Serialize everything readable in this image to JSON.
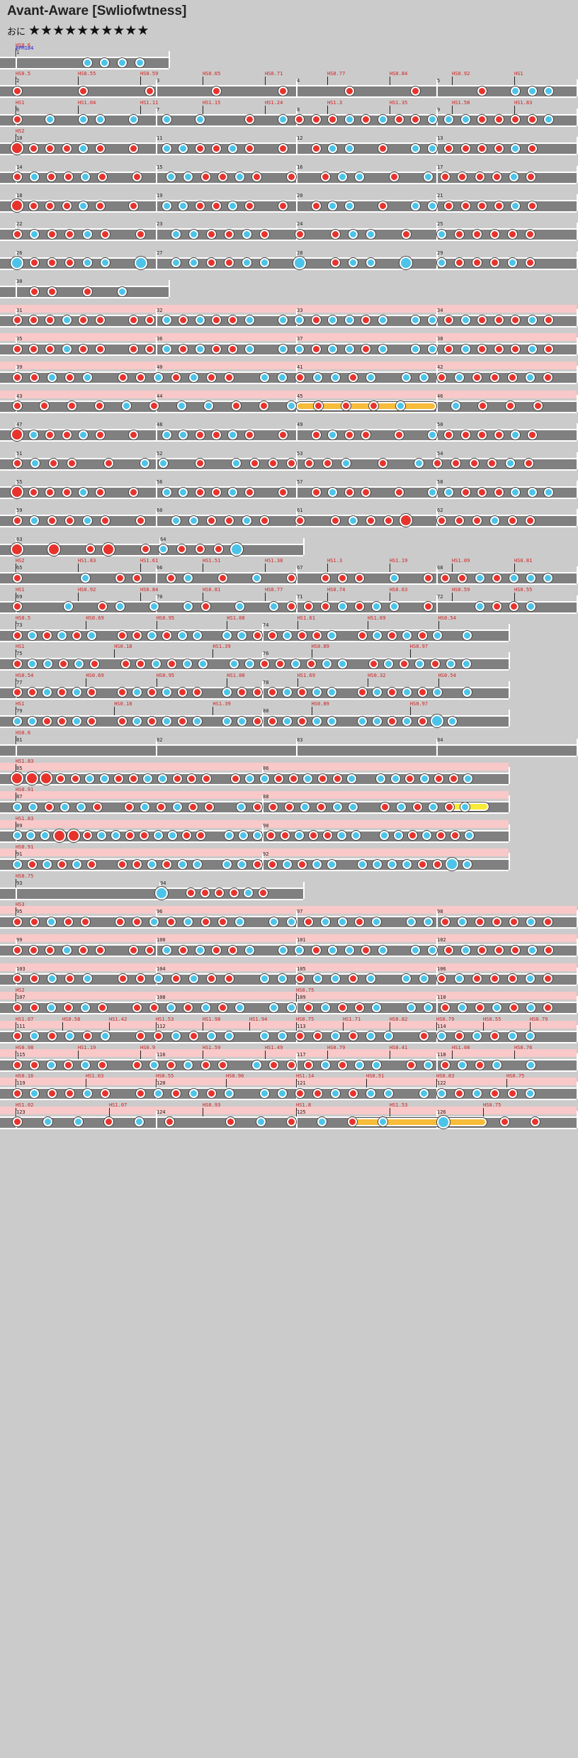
{
  "title": "Avant-Aware [Swliofwtness]",
  "course": "おに",
  "stars": "★★★★★★★★★★",
  "bpm_label": "BPM184",
  "colors": {
    "don": "#e8332c",
    "ka": "#4cc4e9",
    "roll": "#f7bc3a",
    "lane": "#808080",
    "highlight": "#f9c8c8"
  },
  "rows": [
    {
      "measures": [
        "1"
      ],
      "labels": [
        "HS0.6"
      ],
      "notes": "----kkkk",
      "hl": false,
      "w": 240
    },
    {
      "measures": [
        "2",
        "3",
        "4",
        "5"
      ],
      "labels": [
        "HS0.5",
        "HS0.55",
        "HS0.59",
        "HS0.65",
        "HS0.71",
        "HS0.77",
        "HS0.84",
        "HS0.92",
        "HS1"
      ],
      "notes": "d---d---d---d---d---d---d---d-kkk",
      "hl": false,
      "w": 816
    },
    {
      "measures": [
        "6",
        "7",
        "8",
        "9"
      ],
      "labels": [
        "HS1",
        "HS1.04",
        "HS1.11",
        "HS1.15",
        "HS1.24",
        "HS1.3",
        "HS1.35",
        "HS1.58",
        "HS1.83"
      ],
      "notes": "d-k-kk-k-k-k--d-kdddkdkddkkkddddk",
      "hl": false,
      "w": 816
    },
    {
      "measures": [
        "10",
        "11",
        "12",
        "13"
      ],
      "labels": [
        "HS2"
      ],
      "notes": "Ddddkd-d-kkddkd-d-dkk-d-kkddddkd-",
      "hl": false,
      "w": 816
    },
    {
      "measures": [
        "14",
        "15",
        "16",
        "17"
      ],
      "labels": [],
      "notes": "dkddkd-d-kkddkd-d-dkk-d-kddddkd-",
      "hl": false,
      "w": 816
    },
    {
      "measures": [
        "18",
        "19",
        "20",
        "21"
      ],
      "labels": [],
      "notes": "Ddddkd-d-kkddkd-d-dkk-d-kkddddkd-",
      "hl": false,
      "w": 816
    },
    {
      "measures": [
        "22",
        "23",
        "24",
        "25"
      ],
      "labels": [],
      "notes": "dkddkd-d-kkddkd-d-dkk-d-kddddd-",
      "hl": false,
      "w": 816
    },
    {
      "measures": [
        "26",
        "27",
        "28",
        "29"
      ],
      "labels": [],
      "notes": "Kdddkk-K-kkddkk-K-dkk-K-kdddkd-",
      "hl": false,
      "w": 816
    },
    {
      "measures": [
        "30"
      ],
      "labels": [],
      "notes": "-dd-d-k-",
      "hl": false,
      "w": 240
    },
    {
      "measures": [
        "31",
        "32",
        "33",
        "34"
      ],
      "labels": [],
      "notes": "dddkdd-ddkdkddk-kkdkkdk-kkdkdddkd",
      "hl": true,
      "w": 816
    },
    {
      "measures": [
        "35",
        "36",
        "37",
        "38"
      ],
      "labels": [],
      "notes": "dddkdd-ddkdkddk-kkdkkdk-kkdkdddkd",
      "hl": true,
      "w": 816
    },
    {
      "measures": [
        "39",
        "40",
        "41",
        "42"
      ],
      "labels": [],
      "notes": "ddkdk-ddkdkdd-kkdkkdk-kkdkdddkd",
      "hl": true,
      "w": 816
    },
    {
      "measures": [
        "43",
        "44",
        "45",
        "46"
      ],
      "labels": [],
      "notes": "ddddkdkkddkdddk-kddd",
      "hl": true,
      "w": 816,
      "roll": [
        0.5,
        0.75
      ]
    },
    {
      "measures": [
        "47",
        "48",
        "49",
        "50"
      ],
      "labels": [],
      "notes": "Dkddkd-d-kkddkd-d-dkdd-d-kddddkd-",
      "hl": false,
      "w": 816
    },
    {
      "measures": [
        "51",
        "52",
        "53",
        "54"
      ],
      "labels": [],
      "notes": "dkdd-d-kk-d-kdddddk-d-kddddkd-",
      "hl": false,
      "w": 816
    },
    {
      "measures": [
        "55",
        "56",
        "57",
        "58"
      ],
      "labels": [],
      "notes": "Ddddkd-d-kkddkd-d-dkdd-d-kkdddkkk",
      "hl": false,
      "w": 816
    },
    {
      "measures": [
        "59",
        "60",
        "61",
        "62"
      ],
      "labels": [],
      "notes": "dkddkd-d-kkddkd-d-dkddD-dddkdd-",
      "hl": false,
      "w": 816
    },
    {
      "measures": [
        "63",
        "64"
      ],
      "labels": [],
      "notes": "D-D-dD-dkdddK--",
      "hl": false,
      "w": 430
    },
    {
      "measures": [
        "65",
        "66",
        "67",
        "68"
      ],
      "labels": [
        "HS2",
        "HS1.83",
        "HS1.61",
        "HS1.51",
        "HS1.38",
        "HS1.3",
        "HS1.19",
        "HS1.09",
        "HS0.81"
      ],
      "notes": "d---k-dd-dk-d-k-d-ddd-k-dddkdkkk",
      "hl": false,
      "w": 816
    },
    {
      "measures": [
        "69",
        "70",
        "71",
        "72"
      ],
      "labels": [
        "HS1",
        "HS0.92",
        "HS0.84",
        "HS0.81",
        "HS0.77",
        "HS0.74",
        "HS0.63",
        "HS0.59",
        "HS0.55"
      ],
      "notes": "d--k-dk-k-kd-k-kdddkdkk-d--kddk-",
      "hl": false,
      "w": 816
    },
    {
      "measures": [
        "73",
        "74"
      ],
      "labels": [
        "HS0.5",
        "HS0.69",
        "HS0.95",
        "HS1.08",
        "HS1.61",
        "HS1.69",
        "HS0.54"
      ],
      "notes": "dkdkdk-ddkdkk-kkddkddk-dkdkdk-k-",
      "hl": false,
      "w": 720
    },
    {
      "measures": [
        "75",
        "76"
      ],
      "labels": [
        "HS1",
        "HS0.18",
        "HS1.39",
        "HS0.89",
        "HS0.97"
      ],
      "notes": "dkkdkd-ddkdkk-kkddkdkk-dkdkdkk-",
      "hl": false,
      "w": 720
    },
    {
      "measures": [
        "77",
        "78"
      ],
      "labels": [
        "HS0.54",
        "HS0.69",
        "HS0.95",
        "HS1.08",
        "HS1.69",
        "HS0.32",
        "HS0.54"
      ],
      "notes": "ddkdkd-dkdkdd-kdddkdkk-dkdkdk-k-",
      "hl": false,
      "w": 720
    },
    {
      "measures": [
        "79",
        "80"
      ],
      "labels": [
        "HS1",
        "HS0.18",
        "HS1.39",
        "HS0.89",
        "HS0.97"
      ],
      "notes": "kkddkd-dkdkdk-kkddkdkk-kkdkdKk--",
      "hl": false,
      "w": 720
    },
    {
      "measures": [
        "81",
        "82",
        "83",
        "84"
      ],
      "labels": [
        "HS0.6"
      ],
      "notes": "",
      "hl": false,
      "w": 816
    },
    {
      "measures": [
        "85",
        "86"
      ],
      "labels": [
        "HS1.83"
      ],
      "notes": "DDDddkkddkkddd-dkkddkddk-kkdkddk-",
      "hl": true,
      "w": 720
    },
    {
      "measures": [
        "87",
        "88"
      ],
      "labels": [
        "HS0.91"
      ],
      "notes": "kkdkkd-dkdkdd-kdddkdkk-dkdkdk-",
      "hl": true,
      "w": 720,
      "roll": [
        0.88,
        0.96
      ],
      "rollcolor": "yellow"
    },
    {
      "measures": [
        "89",
        "90"
      ],
      "labels": [
        "HS1.83"
      ],
      "notes": "kkkDDdkkddkkdd-kkkddkddkk-kkdkddk-",
      "hl": true,
      "w": 720
    },
    {
      "measures": [
        "91",
        "92"
      ],
      "labels": [
        "HS0.91"
      ],
      "notes": "kdkdkd-ddkdkk-kkddkdkk-kkkkddKk-",
      "hl": true,
      "w": 720
    },
    {
      "measures": [
        "93",
        "94"
      ],
      "labels": [
        "HS0.75"
      ],
      "notes": "----------K-ddddkd-",
      "hl": false,
      "w": 430
    },
    {
      "measures": [
        "95",
        "96",
        "97",
        "98"
      ],
      "labels": [
        "HS3"
      ],
      "notes": "ddkdd-ddkdkddk-kkdkkdk-kkdkdddkd",
      "hl": true,
      "w": 816
    },
    {
      "measures": [
        "99",
        "100",
        "101",
        "102"
      ],
      "labels": [],
      "notes": "dddkdd-ddkdkddk-kkdkkdk-kkdkdddkd",
      "hl": true,
      "w": 816
    },
    {
      "measures": [
        "103",
        "104",
        "105",
        "106"
      ],
      "labels": [],
      "notes": "ddkdk-ddkdkdd-kkdkkdk-kkdkdddkd",
      "hl": true,
      "w": 816
    },
    {
      "measures": [
        "107",
        "108",
        "109",
        "110"
      ],
      "labels": [
        "HS2",
        "HS0.75"
      ],
      "notes": "ddkdkd-ddkdkdk-kkdkddk-kkdkdkdkd",
      "hl": true,
      "w": 816
    },
    {
      "measures": [
        "111",
        "112",
        "113",
        "114"
      ],
      "labels": [
        "HS1.07",
        "HS0.58",
        "HS1.42",
        "HS1.53",
        "HS1.98",
        "HS1.94",
        "HS0.75",
        "HS1.71",
        "HS0.82",
        "HS0.79",
        "HS0.55",
        "HS0.79"
      ],
      "notes": "dkdkdk-ddkdkk-kkddkdkk-dkdkdkk-",
      "hl": true,
      "w": 816
    },
    {
      "measures": [
        "115",
        "116",
        "117",
        "118"
      ],
      "labels": [
        "HS0.98",
        "HS1.19",
        "HS0.9",
        "HS1.59",
        "HS1.49",
        "HS0.79",
        "HS0.41",
        "HS1.08",
        "HS0.76"
      ],
      "notes": "ddkdkd-dkdkdd-kdddkdkk-dkdkdk-k-",
      "hl": true,
      "w": 816
    },
    {
      "measures": [
        "119",
        "120",
        "121",
        "122"
      ],
      "labels": [
        "HS0.16",
        "HS1.03",
        "HS0.55",
        "HS0.96",
        "HS1.14",
        "HS0.51",
        "HS0.83",
        "HS0.75"
      ],
      "notes": "dkddkd-dkdkdk-kkddkdkk-kkdkddk-",
      "hl": true,
      "w": 816
    },
    {
      "measures": [
        "123",
        "124",
        "125",
        "126"
      ],
      "labels": [
        "HS1.02",
        "HS1.07",
        "HS0.93",
        "HS1.8",
        "HS1.53",
        "HS0.75"
      ],
      "notes": "dkkdkd-dkdkdk-K-dd",
      "hl": true,
      "w": 816,
      "roll": [
        0.6,
        0.84
      ]
    }
  ]
}
